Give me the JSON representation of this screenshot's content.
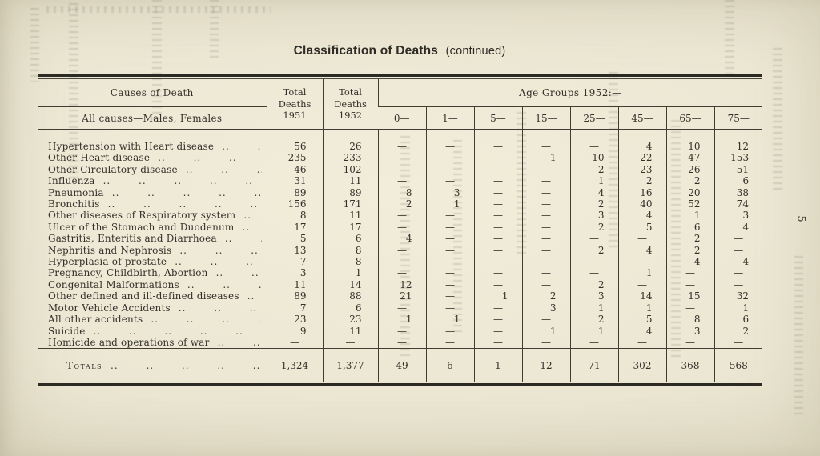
{
  "page": {
    "title_main": "Classification of Deaths",
    "title_suffix": "(continued)",
    "page_number": "5"
  },
  "colors": {
    "paper": "#ece7d3",
    "ink": "#33312b",
    "rule": "#2d2b25"
  },
  "table": {
    "header": {
      "causes_title": "Causes of Death",
      "causes_subtitle": "All causes—Males, Females",
      "total_1951": "Total Deaths 1951",
      "total_1952": "Total Deaths 1952",
      "age_title": "Age Groups 1952:—",
      "age_cols": [
        "0—",
        "1—",
        "5—",
        "15—",
        "25—",
        "45—",
        "65—",
        "75—"
      ]
    },
    "rows": [
      {
        "cause": "Hypertension with Heart disease",
        "y1951": "56",
        "y1952": "26",
        "ages": [
          "—",
          "—",
          "—",
          "—",
          "—",
          "4",
          "10",
          "12"
        ]
      },
      {
        "cause": "Other Heart disease",
        "y1951": "235",
        "y1952": "233",
        "ages": [
          "—",
          "—",
          "—",
          "1",
          "10",
          "22",
          "47",
          "153"
        ]
      },
      {
        "cause": "Other Circulatory disease",
        "y1951": "46",
        "y1952": "102",
        "ages": [
          "—",
          "—",
          "—",
          "—",
          "2",
          "23",
          "26",
          "51"
        ]
      },
      {
        "cause": "Influenza",
        "y1951": "31",
        "y1952": "11",
        "ages": [
          "—",
          "—",
          "—",
          "—",
          "1",
          "2",
          "2",
          "6"
        ]
      },
      {
        "cause": "Pneumonia",
        "y1951": "89",
        "y1952": "89",
        "ages": [
          "8",
          "3",
          "—",
          "—",
          "4",
          "16",
          "20",
          "38"
        ]
      },
      {
        "cause": "Bronchitis",
        "y1951": "156",
        "y1952": "171",
        "ages": [
          "2",
          "1",
          "—",
          "—",
          "2",
          "40",
          "52",
          "74"
        ]
      },
      {
        "cause": "Other diseases of Respiratory system",
        "y1951": "8",
        "y1952": "11",
        "ages": [
          "—",
          "—",
          "—",
          "—",
          "3",
          "4",
          "1",
          "3"
        ]
      },
      {
        "cause": "Ulcer of the Stomach and Duodenum",
        "y1951": "17",
        "y1952": "17",
        "ages": [
          "—",
          "—",
          "—",
          "—",
          "2",
          "5",
          "6",
          "4"
        ]
      },
      {
        "cause": "Gastritis, Enteritis and Diarrhoea",
        "y1951": "5",
        "y1952": "6",
        "ages": [
          "4",
          "—",
          "—",
          "—",
          "—",
          "—",
          "2",
          "—"
        ]
      },
      {
        "cause": "Nephritis and Nephrosis",
        "y1951": "13",
        "y1952": "8",
        "ages": [
          "—",
          "—",
          "—",
          "—",
          "2",
          "4",
          "2",
          "—"
        ]
      },
      {
        "cause": "Hyperplasia of prostate",
        "y1951": "7",
        "y1952": "8",
        "ages": [
          "—",
          "—",
          "—",
          "—",
          "—",
          "—",
          "4",
          "4"
        ]
      },
      {
        "cause": "Pregnancy, Childbirth, Abortion",
        "y1951": "3",
        "y1952": "1",
        "ages": [
          "—",
          "—",
          "—",
          "—",
          "—",
          "1",
          "—",
          "—"
        ]
      },
      {
        "cause": "Congenital Malformations",
        "y1951": "11",
        "y1952": "14",
        "ages": [
          "12",
          "—",
          "—",
          "—",
          "2",
          "—",
          "—",
          "—"
        ]
      },
      {
        "cause": "Other defined and ill-defined diseases",
        "y1951": "89",
        "y1952": "88",
        "ages": [
          "21",
          "—",
          "1",
          "2",
          "3",
          "14",
          "15",
          "32"
        ]
      },
      {
        "cause": "Motor Vehicle Accidents",
        "y1951": "7",
        "y1952": "6",
        "ages": [
          "—",
          "—",
          "—",
          "3",
          "1",
          "1",
          "—",
          "1"
        ]
      },
      {
        "cause": "All other accidents",
        "y1951": "23",
        "y1952": "23",
        "ages": [
          "1",
          "1",
          "—",
          "—",
          "2",
          "5",
          "8",
          "6"
        ]
      },
      {
        "cause": "Suicide",
        "y1951": "9",
        "y1952": "11",
        "ages": [
          "—",
          "—",
          "—",
          "1",
          "1",
          "4",
          "3",
          "2"
        ]
      },
      {
        "cause": "Homicide and operations of war",
        "y1951": "—",
        "y1952": "—",
        "ages": [
          "—",
          "—",
          "—",
          "—",
          "—",
          "—",
          "—",
          "—"
        ]
      }
    ],
    "totals": {
      "label": "Totals",
      "y1951": "1,324",
      "y1952": "1,377",
      "ages": [
        "49",
        "6",
        "1",
        "12",
        "71",
        "302",
        "368",
        "568"
      ]
    }
  }
}
